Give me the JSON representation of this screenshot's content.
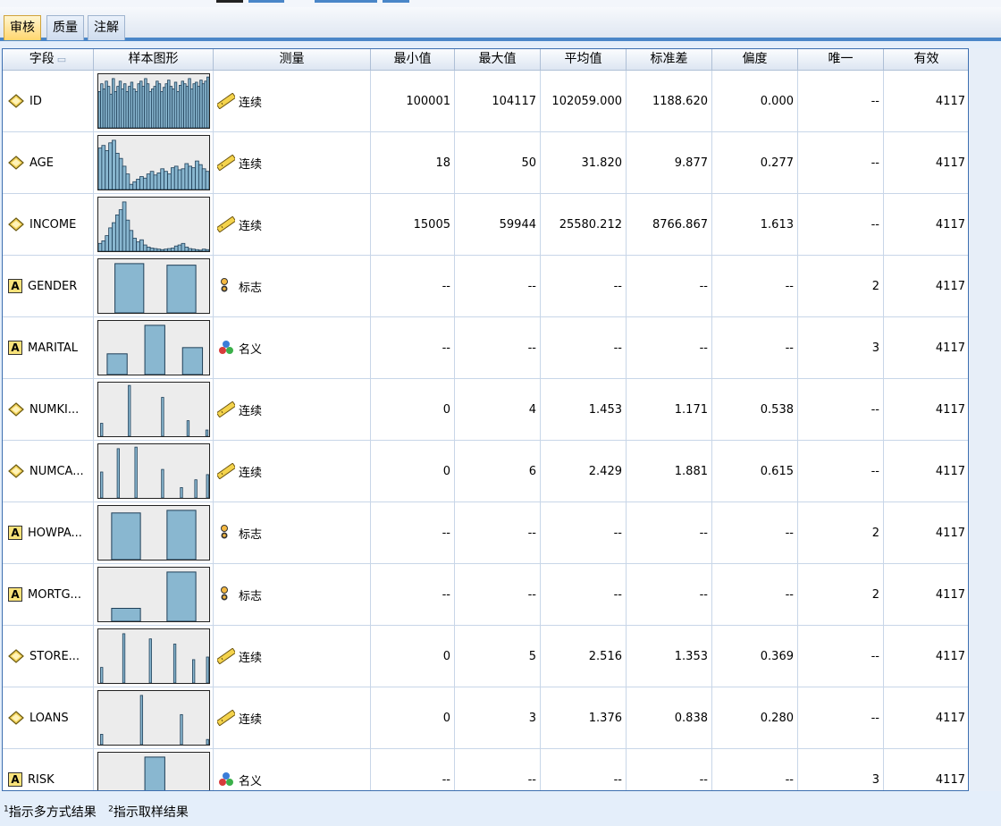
{
  "tabs": [
    {
      "label": "审核",
      "active": true
    },
    {
      "label": "质量",
      "active": false
    },
    {
      "label": "注解",
      "active": false
    }
  ],
  "columns": {
    "field": "字段",
    "graph": "样本图形",
    "measure": "测量",
    "min": "最小值",
    "max": "最大值",
    "mean": "平均值",
    "std": "标准差",
    "skew": "偏度",
    "unique": "唯一",
    "valid": "有效"
  },
  "rows": [
    {
      "field": "ID",
      "type": "continuous",
      "measure": "连续",
      "measure_icon": "ruler-icon",
      "min": "100001",
      "max": "104117",
      "mean": "102059.000",
      "std": "1188.620",
      "skew": "0.000",
      "unique": "--",
      "valid": "4117",
      "histogram": [
        0.7,
        0.85,
        0.75,
        0.9,
        0.8,
        0.65,
        0.95,
        0.7,
        0.8,
        0.9,
        0.75,
        0.85,
        0.7,
        0.8,
        0.88,
        0.75,
        0.7,
        0.85,
        0.9,
        0.8,
        0.95,
        0.85,
        0.7,
        0.75,
        0.8,
        0.9,
        0.85,
        0.7,
        0.78,
        0.85,
        0.92,
        0.8,
        0.75,
        0.88,
        0.7,
        0.82,
        0.9,
        0.85,
        0.8,
        0.95,
        0.75,
        0.85,
        0.88,
        0.8,
        0.92,
        0.85,
        0.9,
        0.98
      ]
    },
    {
      "field": "AGE",
      "type": "continuous",
      "measure": "连续",
      "measure_icon": "ruler-icon",
      "min": "18",
      "max": "50",
      "mean": "31.820",
      "std": "9.877",
      "skew": "0.277",
      "unique": "--",
      "valid": "4117",
      "histogram": [
        0.8,
        0.85,
        0.75,
        0.9,
        0.95,
        0.7,
        0.6,
        0.45,
        0.3,
        0.1,
        0.15,
        0.2,
        0.25,
        0.22,
        0.3,
        0.35,
        0.28,
        0.32,
        0.4,
        0.35,
        0.3,
        0.42,
        0.45,
        0.38,
        0.4,
        0.5,
        0.45,
        0.42,
        0.55,
        0.48,
        0.4,
        0.35
      ]
    },
    {
      "field": "INCOME",
      "type": "continuous",
      "measure": "连续",
      "measure_icon": "ruler-icon",
      "min": "15005",
      "max": "59944",
      "mean": "25580.212",
      "std": "8766.867",
      "skew": "1.613",
      "unique": "--",
      "valid": "4117",
      "histogram": [
        0.15,
        0.2,
        0.3,
        0.45,
        0.55,
        0.7,
        0.8,
        0.95,
        0.6,
        0.4,
        0.25,
        0.18,
        0.22,
        0.12,
        0.08,
        0.06,
        0.05,
        0.04,
        0.03,
        0.04,
        0.05,
        0.06,
        0.1,
        0.12,
        0.15,
        0.08,
        0.05,
        0.04,
        0.03,
        0.02,
        0.04,
        0.03
      ]
    },
    {
      "field": "GENDER",
      "type": "string",
      "measure": "标志",
      "measure_icon": "flag-icon",
      "min": "--",
      "max": "--",
      "mean": "--",
      "std": "--",
      "skew": "--",
      "unique": "2",
      "valid": "4117",
      "bars": [
        {
          "pos": 0.15,
          "w": 0.26,
          "h": 0.95
        },
        {
          "pos": 0.62,
          "w": 0.26,
          "h": 0.92
        }
      ]
    },
    {
      "field": "MARITAL",
      "type": "string",
      "measure": "名义",
      "measure_icon": "nominal-icon",
      "min": "--",
      "max": "--",
      "mean": "--",
      "std": "--",
      "skew": "--",
      "unique": "3",
      "valid": "4117",
      "bars": [
        {
          "pos": 0.08,
          "w": 0.18,
          "h": 0.4
        },
        {
          "pos": 0.42,
          "w": 0.18,
          "h": 0.95
        },
        {
          "pos": 0.76,
          "w": 0.18,
          "h": 0.52
        }
      ]
    },
    {
      "field": "NUMKI...",
      "type": "continuous",
      "measure": "连续",
      "measure_icon": "ruler-icon",
      "min": "0",
      "max": "4",
      "mean": "1.453",
      "std": "1.171",
      "skew": "0.538",
      "unique": "--",
      "valid": "4117",
      "spikes": [
        {
          "pos": 0.02,
          "h": 0.25
        },
        {
          "pos": 0.27,
          "h": 0.98
        },
        {
          "pos": 0.57,
          "h": 0.75
        },
        {
          "pos": 0.8,
          "h": 0.3
        },
        {
          "pos": 0.97,
          "h": 0.12
        }
      ]
    },
    {
      "field": "NUMCA...",
      "type": "continuous",
      "measure": "连续",
      "measure_icon": "ruler-icon",
      "min": "0",
      "max": "6",
      "mean": "2.429",
      "std": "1.881",
      "skew": "0.615",
      "unique": "--",
      "valid": "4117",
      "spikes": [
        {
          "pos": 0.02,
          "h": 0.5
        },
        {
          "pos": 0.17,
          "h": 0.95
        },
        {
          "pos": 0.33,
          "h": 0.98
        },
        {
          "pos": 0.57,
          "h": 0.55
        },
        {
          "pos": 0.74,
          "h": 0.2
        },
        {
          "pos": 0.87,
          "h": 0.35
        },
        {
          "pos": 0.98,
          "h": 0.45
        }
      ]
    },
    {
      "field": "HOWPA...",
      "type": "string",
      "measure": "标志",
      "measure_icon": "flag-icon",
      "min": "--",
      "max": "--",
      "mean": "--",
      "std": "--",
      "skew": "--",
      "unique": "2",
      "valid": "4117",
      "bars": [
        {
          "pos": 0.12,
          "w": 0.26,
          "h": 0.9
        },
        {
          "pos": 0.62,
          "w": 0.26,
          "h": 0.95
        }
      ]
    },
    {
      "field": "MORTG...",
      "type": "string",
      "measure": "标志",
      "measure_icon": "flag-icon",
      "min": "--",
      "max": "--",
      "mean": "--",
      "std": "--",
      "skew": "--",
      "unique": "2",
      "valid": "4117",
      "bars": [
        {
          "pos": 0.12,
          "w": 0.26,
          "h": 0.25
        },
        {
          "pos": 0.62,
          "w": 0.26,
          "h": 0.95
        }
      ]
    },
    {
      "field": "STORE...",
      "type": "continuous",
      "measure": "连续",
      "measure_icon": "ruler-icon",
      "min": "0",
      "max": "5",
      "mean": "2.516",
      "std": "1.353",
      "skew": "0.369",
      "unique": "--",
      "valid": "4117",
      "spikes": [
        {
          "pos": 0.02,
          "h": 0.3
        },
        {
          "pos": 0.22,
          "h": 0.95
        },
        {
          "pos": 0.46,
          "h": 0.85
        },
        {
          "pos": 0.68,
          "h": 0.75
        },
        {
          "pos": 0.85,
          "h": 0.45
        },
        {
          "pos": 0.98,
          "h": 0.5
        }
      ]
    },
    {
      "field": "LOANS",
      "type": "continuous",
      "measure": "连续",
      "measure_icon": "ruler-icon",
      "min": "0",
      "max": "3",
      "mean": "1.376",
      "std": "0.838",
      "skew": "0.280",
      "unique": "--",
      "valid": "4117",
      "spikes": [
        {
          "pos": 0.02,
          "h": 0.2
        },
        {
          "pos": 0.38,
          "h": 0.95
        },
        {
          "pos": 0.74,
          "h": 0.58
        },
        {
          "pos": 0.98,
          "h": 0.1
        }
      ]
    },
    {
      "field": "RISK",
      "type": "string",
      "measure": "名义",
      "measure_icon": "nominal-icon",
      "min": "--",
      "max": "--",
      "mean": "--",
      "std": "--",
      "skew": "--",
      "unique": "3",
      "valid": "4117",
      "bars": [
        {
          "pos": 0.08,
          "w": 0.18,
          "h": 0.12
        },
        {
          "pos": 0.42,
          "w": 0.18,
          "h": 0.95
        },
        {
          "pos": 0.76,
          "w": 0.18,
          "h": 0.05
        }
      ]
    }
  ],
  "footnotes": [
    {
      "sup": "1",
      "text": "指示多方式结果"
    },
    {
      "sup": "2",
      "text": "指示取样结果"
    }
  ],
  "colors": {
    "bar_fill": "#89b7d0",
    "bar_stroke": "#1f3f58",
    "tab_active": "#ffd66e",
    "accent": "#4a86c8"
  }
}
